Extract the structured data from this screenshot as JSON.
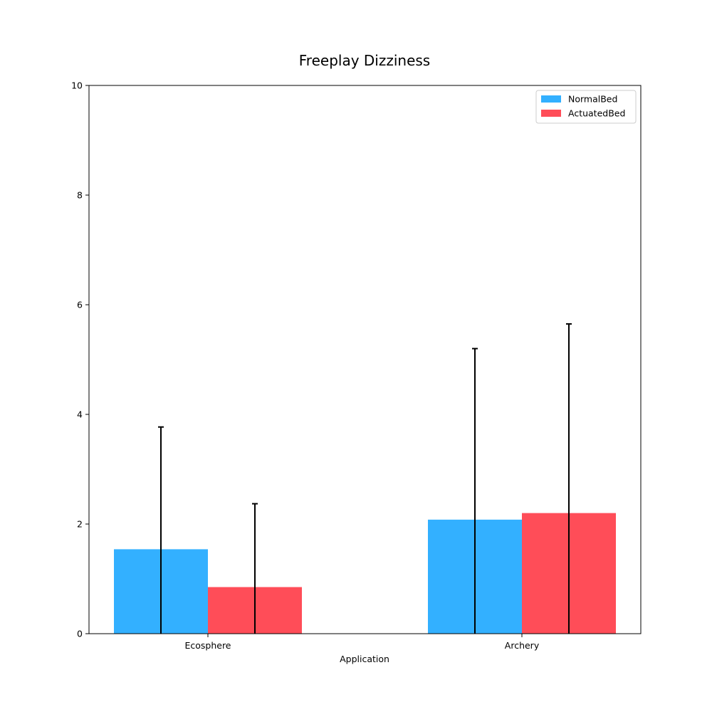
{
  "chart_data": {
    "type": "bar",
    "title": "Freeplay Dizziness",
    "xlabel": "Application",
    "ylabel": "",
    "categories": [
      "Ecosphere",
      "Archery"
    ],
    "ylim": [
      0,
      10
    ],
    "yticks": [
      "0",
      "2",
      "4",
      "6",
      "8",
      "10"
    ],
    "series": [
      {
        "name": "NormalBed",
        "color": "#33b0ff",
        "values": [
          1.54,
          2.08
        ],
        "error_upper": [
          3.77,
          5.2
        ]
      },
      {
        "name": "ActuatedBed",
        "color": "#ff4d58",
        "values": [
          0.85,
          2.2
        ],
        "error_upper": [
          2.37,
          5.65
        ]
      }
    ],
    "error_bar_color": "#000000",
    "legend_position": "top-right",
    "grid": false
  }
}
